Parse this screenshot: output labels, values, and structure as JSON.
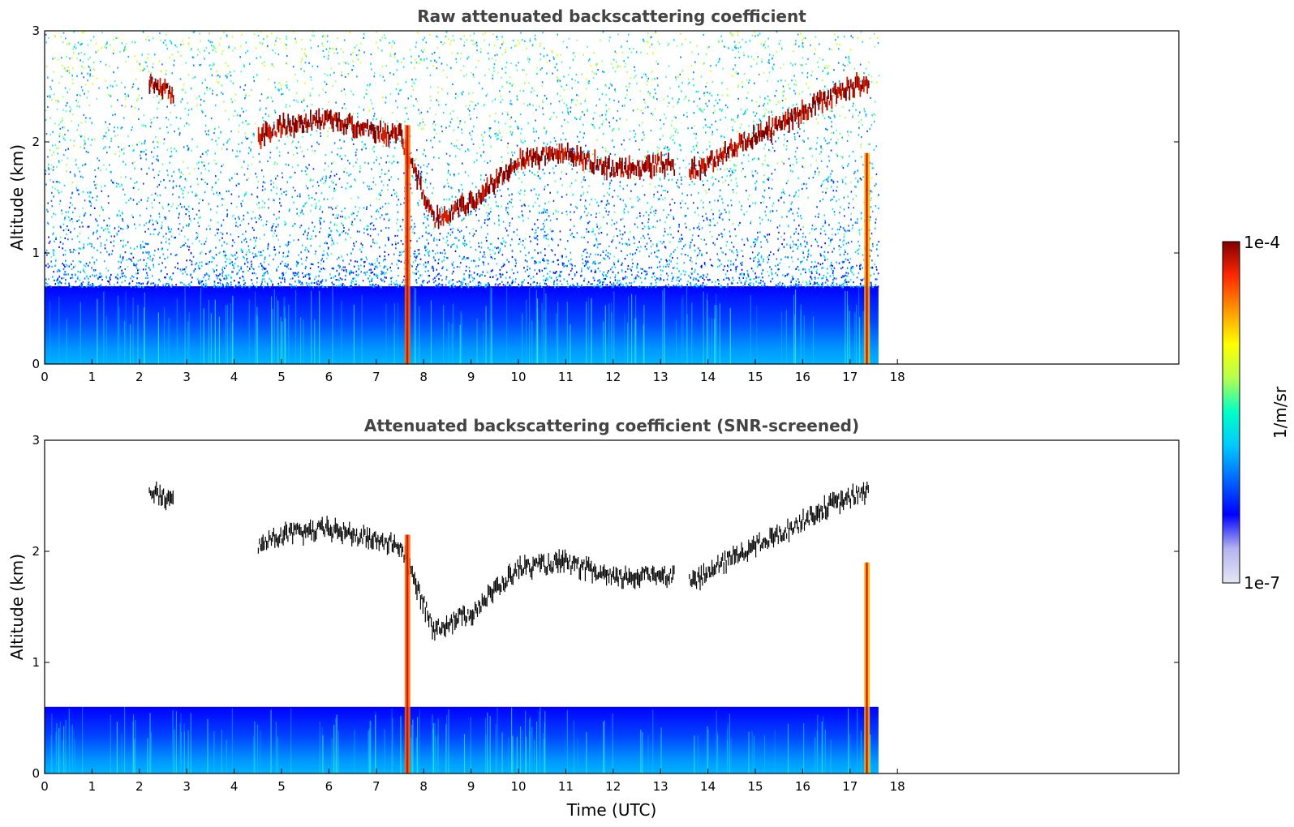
{
  "chart_data": [
    {
      "type": "heatmap",
      "title": "Raw attenuated backscattering coefficient",
      "xlabel": "",
      "ylabel": "Altitude (km)",
      "xlim": [
        0,
        24
      ],
      "ylim": [
        0,
        3
      ],
      "xticks": [
        "0",
        "1",
        "2",
        "3",
        "4",
        "5",
        "6",
        "7",
        "8",
        "9",
        "10",
        "11",
        "12",
        "13",
        "14",
        "15",
        "16",
        "17",
        "18"
      ],
      "yticks": [
        "0",
        "1",
        "2",
        "3"
      ],
      "data_end_hour": 17.6,
      "boundary_layer_top_km": 0.7,
      "cloud_layer": {
        "time_utc": [
          2.2,
          4.5,
          5.0,
          6.0,
          7.0,
          7.5,
          8.2,
          9.0,
          10.0,
          11.0,
          12.0,
          13.0,
          13.8,
          14.5,
          15.5,
          16.5,
          17.4
        ],
        "altitude_km": [
          2.55,
          2.05,
          2.15,
          2.2,
          2.1,
          2.05,
          1.3,
          1.45,
          1.85,
          1.9,
          1.75,
          1.8,
          1.75,
          1.95,
          2.15,
          2.4,
          2.55
        ]
      }
    },
    {
      "type": "heatmap",
      "title": "Attenuated backscattering coefficient (SNR-screened)",
      "xlabel": "Time (UTC)",
      "ylabel": "Altitude (km)",
      "xlim": [
        0,
        24
      ],
      "ylim": [
        0,
        3
      ],
      "xticks": [
        "0",
        "1",
        "2",
        "3",
        "4",
        "5",
        "6",
        "7",
        "8",
        "9",
        "10",
        "11",
        "12",
        "13",
        "14",
        "15",
        "16",
        "17",
        "18"
      ],
      "yticks": [
        "0",
        "1",
        "2",
        "3"
      ],
      "data_end_hour": 17.6,
      "boundary_layer_top_km": 0.6,
      "cloud_layer": {
        "time_utc": [
          2.2,
          4.5,
          5.0,
          6.0,
          7.0,
          7.5,
          8.2,
          9.0,
          10.0,
          11.0,
          12.0,
          13.0,
          13.8,
          14.5,
          15.5,
          16.5,
          17.4
        ],
        "altitude_km": [
          2.55,
          2.05,
          2.15,
          2.2,
          2.1,
          2.05,
          1.3,
          1.45,
          1.85,
          1.9,
          1.75,
          1.8,
          1.75,
          1.95,
          2.15,
          2.4,
          2.55
        ]
      }
    }
  ],
  "colorbar": {
    "label": "1/m/sr",
    "max_label": "1e-4",
    "min_label": "1e-7",
    "colors": [
      "#e6e6f5",
      "#b4b4f0",
      "#0000ff",
      "#0064ff",
      "#00c8ff",
      "#00ffc8",
      "#b4ff50",
      "#ffff00",
      "#ff9600",
      "#ff2800",
      "#800000"
    ]
  }
}
